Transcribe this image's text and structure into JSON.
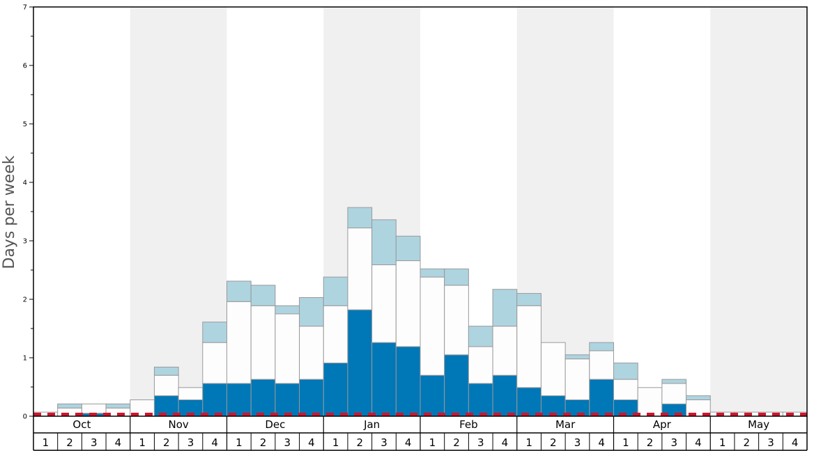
{
  "chart_data": {
    "type": "bar",
    "ylabel": "Days per week",
    "ylim": [
      0,
      7
    ],
    "yticks": [
      "0",
      "1",
      "2",
      "3",
      "4",
      "5",
      "6",
      "7"
    ],
    "months": [
      "Oct",
      "Nov",
      "Dec",
      "Jan",
      "Feb",
      "Mar",
      "Apr",
      "May"
    ],
    "weeks": [
      "1",
      "2",
      "3",
      "4"
    ],
    "colors": {
      "dark": "#0077b6",
      "white": "#fdfdfd",
      "light": "#aed4e0",
      "threshold": "#d0142c",
      "band": "#f0f0f0"
    },
    "series": [
      {
        "name": "dark",
        "values": [
          0,
          0,
          0.05,
          0,
          0,
          0.35,
          0.28,
          0.56,
          0.56,
          0.63,
          0.56,
          0.63,
          0.91,
          1.82,
          1.26,
          1.19,
          0.7,
          1.05,
          0.56,
          0.7,
          0.49,
          0.35,
          0.28,
          0.63,
          0.28,
          0,
          0.21,
          0,
          0,
          0,
          0,
          0
        ]
      },
      {
        "name": "white",
        "values": [
          0.07,
          0.14,
          0.16,
          0.14,
          0.28,
          0.35,
          0.21,
          0.7,
          1.4,
          1.26,
          1.19,
          0.91,
          0.98,
          1.4,
          1.33,
          1.47,
          1.68,
          1.19,
          0.63,
          0.84,
          1.4,
          0.91,
          0.7,
          0.49,
          0.35,
          0.49,
          0.35,
          0.28,
          0.07,
          0.07,
          0.07,
          0.07
        ]
      },
      {
        "name": "light",
        "values": [
          0,
          0.07,
          0,
          0.07,
          0,
          0.14,
          0,
          0.35,
          0.35,
          0.35,
          0.14,
          0.49,
          0.49,
          0.35,
          0.77,
          0.42,
          0.14,
          0.28,
          0.35,
          0.63,
          0.21,
          0,
          0.07,
          0.14,
          0.28,
          0,
          0.07,
          0.07,
          0,
          0,
          0,
          0
        ]
      }
    ],
    "threshold": 0.03,
    "grid": false,
    "legend": "none"
  }
}
